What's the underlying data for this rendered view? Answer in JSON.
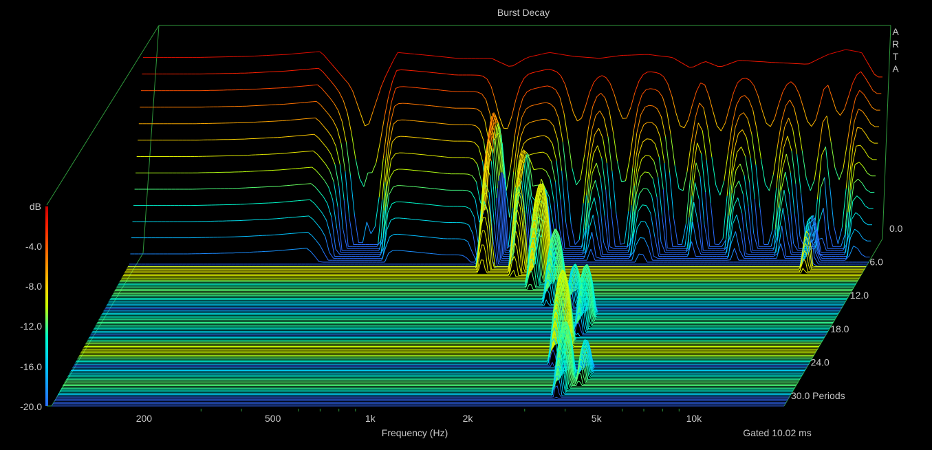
{
  "chart_data": {
    "type": "waterfall",
    "title": "Burst Decay",
    "brand": "ARTA",
    "xlabel": "Frequency (Hz)",
    "x_scale": "log",
    "x_ticks": [
      {
        "value": 200,
        "label": "200"
      },
      {
        "value": 500,
        "label": "500"
      },
      {
        "value": 1000,
        "label": "1k"
      },
      {
        "value": 2000,
        "label": "2k"
      },
      {
        "value": 5000,
        "label": "5k"
      },
      {
        "value": 10000,
        "label": "10k"
      }
    ],
    "xlim": [
      120,
      22000
    ],
    "colorbar": {
      "label": "dB",
      "ticks": [
        "-4.0",
        "-8.0",
        "-12.0",
        "-16.0",
        "-20.0"
      ],
      "range": [
        -20,
        0
      ],
      "colors": [
        "#2a6cff",
        "#00c8ff",
        "#00ffc8",
        "#c8ff00",
        "#ffd000",
        "#ff7800",
        "#ff2000",
        "#c80000"
      ]
    },
    "z_axis": {
      "ticks": [
        "0.0",
        "6.0",
        "12.0",
        "18.0",
        "24.0",
        "30.0 Periods"
      ],
      "range": [
        0,
        30
      ],
      "unit": "Periods"
    },
    "footnote": "Gated 10.02 ms",
    "floor_color": "#2a5ad8",
    "frame_color": "#2f9a3c",
    "front_profile_db": [
      {
        "f": 140,
        "db": -1.5
      },
      {
        "f": 180,
        "db": -1.5
      },
      {
        "f": 250,
        "db": -1.4
      },
      {
        "f": 330,
        "db": -1.2
      },
      {
        "f": 420,
        "db": -0.9
      },
      {
        "f": 520,
        "db": -4.5
      },
      {
        "f": 580,
        "db": -9.0
      },
      {
        "f": 650,
        "db": -4.0
      },
      {
        "f": 720,
        "db": -1.0
      },
      {
        "f": 900,
        "db": -1.3
      },
      {
        "f": 1100,
        "db": -1.6
      },
      {
        "f": 1400,
        "db": -1.6
      },
      {
        "f": 1600,
        "db": -2.5
      },
      {
        "f": 1800,
        "db": -1.5
      },
      {
        "f": 2100,
        "db": -1.0
      },
      {
        "f": 2500,
        "db": -1.4
      },
      {
        "f": 3000,
        "db": -1.6
      },
      {
        "f": 3500,
        "db": -1.3
      },
      {
        "f": 4200,
        "db": -1.2
      },
      {
        "f": 5000,
        "db": -1.5
      },
      {
        "f": 5700,
        "db": -2.6
      },
      {
        "f": 6300,
        "db": -1.9
      },
      {
        "f": 7000,
        "db": -2.5
      },
      {
        "f": 8000,
        "db": -1.8
      },
      {
        "f": 10000,
        "db": -2.0
      },
      {
        "f": 13000,
        "db": -2.2
      },
      {
        "f": 15000,
        "db": -1.2
      },
      {
        "f": 17000,
        "db": -0.7
      },
      {
        "f": 19000,
        "db": -1.0
      },
      {
        "f": 21000,
        "db": -3.5
      }
    ],
    "decay_dips_hz": [
      560,
      620,
      1550,
      2600,
      3600,
      5400,
      7100,
      10000,
      13500,
      16500
    ],
    "resonances": [
      {
        "f": 1500,
        "z": 2.5,
        "db": -5.5
      },
      {
        "f": 1900,
        "z": 3.5,
        "db": -8.5
      },
      {
        "f": 2250,
        "z": 6.0,
        "db": -10.0
      },
      {
        "f": 2700,
        "z": 9.5,
        "db": -13.0
      },
      {
        "f": 3200,
        "z": 11.0,
        "db": -16.0
      },
      {
        "f": 3800,
        "z": 15.0,
        "db": -13.5
      },
      {
        "f": 3600,
        "z": 20.0,
        "db": -11.0
      },
      {
        "f": 4700,
        "z": 24.5,
        "db": -16.0
      },
      {
        "f": 4200,
        "z": 26.0,
        "db": -13.0
      },
      {
        "f": 14500,
        "z": 4.0,
        "db": -15.0
      }
    ]
  }
}
